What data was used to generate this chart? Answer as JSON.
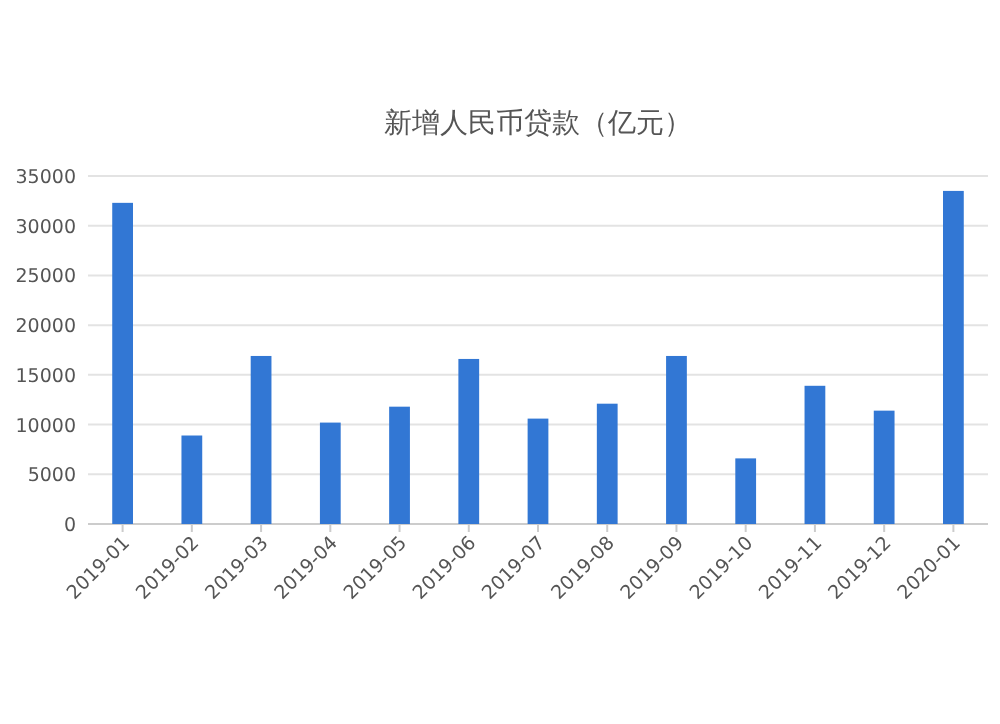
{
  "chart_data": {
    "type": "bar",
    "title": "新增人民币贷款（亿元）",
    "categories": [
      "2019-01",
      "2019-02",
      "2019-03",
      "2019-04",
      "2019-05",
      "2019-06",
      "2019-07",
      "2019-08",
      "2019-09",
      "2019-10",
      "2019-11",
      "2019-12",
      "2020-01"
    ],
    "values": [
      32300,
      8900,
      16900,
      10200,
      11800,
      16600,
      10600,
      12100,
      16900,
      6600,
      13900,
      11400,
      33500
    ],
    "color": "#3277d4",
    "ylim": [
      0,
      35000
    ],
    "yticks": [
      0,
      5000,
      10000,
      15000,
      20000,
      25000,
      30000,
      35000
    ],
    "grid": "y"
  }
}
